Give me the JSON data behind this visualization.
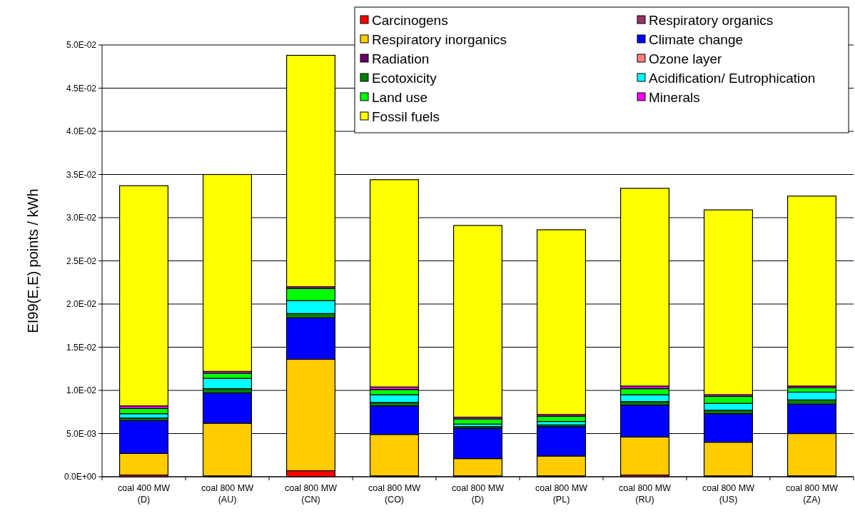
{
  "chart_data": {
    "type": "bar",
    "stacked": true,
    "ylabel": "EI99(E,E) points / kWh",
    "categories": [
      "coal 400 MW\n(D)",
      "coal 800 MW\n(AU)",
      "coal 800 MW\n(CN)",
      "coal 800 MW\n(CO)",
      "coal 800 MW\n(D)",
      "coal 800 MW\n(PL)",
      "coal 800 MW\n(RU)",
      "coal 800 MW\n(US)",
      "coal 800 MW\n(ZA)"
    ],
    "ylim": [
      0,
      0.05
    ],
    "yticks": [
      {
        "value": 0,
        "label": "0.0E+00"
      },
      {
        "value": 0.005,
        "label": "5.0E-03"
      },
      {
        "value": 0.01,
        "label": "1.0E-02"
      },
      {
        "value": 0.015,
        "label": "1.5E-02"
      },
      {
        "value": 0.02,
        "label": "2.0E-02"
      },
      {
        "value": 0.025,
        "label": "2.5E-02"
      },
      {
        "value": 0.03,
        "label": "3.0E-02"
      },
      {
        "value": 0.035,
        "label": "3.5E-02"
      },
      {
        "value": 0.04,
        "label": "4.0E-02"
      },
      {
        "value": 0.045,
        "label": "4.5E-02"
      },
      {
        "value": 0.05,
        "label": "5.0E-02"
      }
    ],
    "grid": "y",
    "legend": "top right",
    "series": [
      {
        "name": "Carcinogens",
        "color": "#ff0000",
        "values": [
          0.0002,
          0.0001,
          0.0007,
          0.0001,
          0.0001,
          0.0001,
          0.0002,
          0.0001,
          0.0001
        ]
      },
      {
        "name": "Respiratory organics",
        "color": "#993366",
        "values": [
          0,
          0,
          0,
          0,
          0,
          0,
          0,
          0,
          0
        ]
      },
      {
        "name": "Respiratory inorganics",
        "color": "#ffcc00",
        "values": [
          0.0025,
          0.0061,
          0.0129,
          0.0048,
          0.002,
          0.0023,
          0.0044,
          0.0039,
          0.0049
        ]
      },
      {
        "name": "Climate change",
        "color": "#0000ff",
        "values": [
          0.0038,
          0.0035,
          0.0048,
          0.0033,
          0.0035,
          0.0034,
          0.0037,
          0.0033,
          0.0034
        ]
      },
      {
        "name": "Radiation",
        "color": "#660066",
        "values": [
          0,
          0,
          0,
          0,
          0,
          0,
          0,
          0,
          0
        ]
      },
      {
        "name": "Ozone layer",
        "color": "#ff8080",
        "values": [
          0,
          0,
          0,
          0,
          0,
          0,
          0,
          0,
          0
        ]
      },
      {
        "name": "Ecotoxicity",
        "color": "#008000",
        "values": [
          0.0003,
          0.0005,
          0.0005,
          0.0004,
          0.0002,
          0.0002,
          0.0004,
          0.0004,
          0.0005
        ]
      },
      {
        "name": "Acidification/ Eutrophication",
        "color": "#00ffff",
        "values": [
          0.0005,
          0.0012,
          0.0015,
          0.0009,
          0.0003,
          0.0004,
          0.0008,
          0.0008,
          0.0009
        ]
      },
      {
        "name": "Land use",
        "color": "#00ff00",
        "values": [
          0.0006,
          0.0006,
          0.0014,
          0.0006,
          0.0006,
          0.0006,
          0.0007,
          0.0008,
          0.0005
        ]
      },
      {
        "name": "Minerals",
        "color": "#ff00ff",
        "values": [
          0.0003,
          0.0002,
          0.0002,
          0.0003,
          0.0002,
          0.0002,
          0.0003,
          0.0002,
          0.0002
        ]
      },
      {
        "name": "Fossil fuels",
        "color": "#ffff00",
        "values": [
          0.0255,
          0.0228,
          0.0268,
          0.024,
          0.0222,
          0.0214,
          0.0229,
          0.0214,
          0.022
        ]
      }
    ]
  }
}
